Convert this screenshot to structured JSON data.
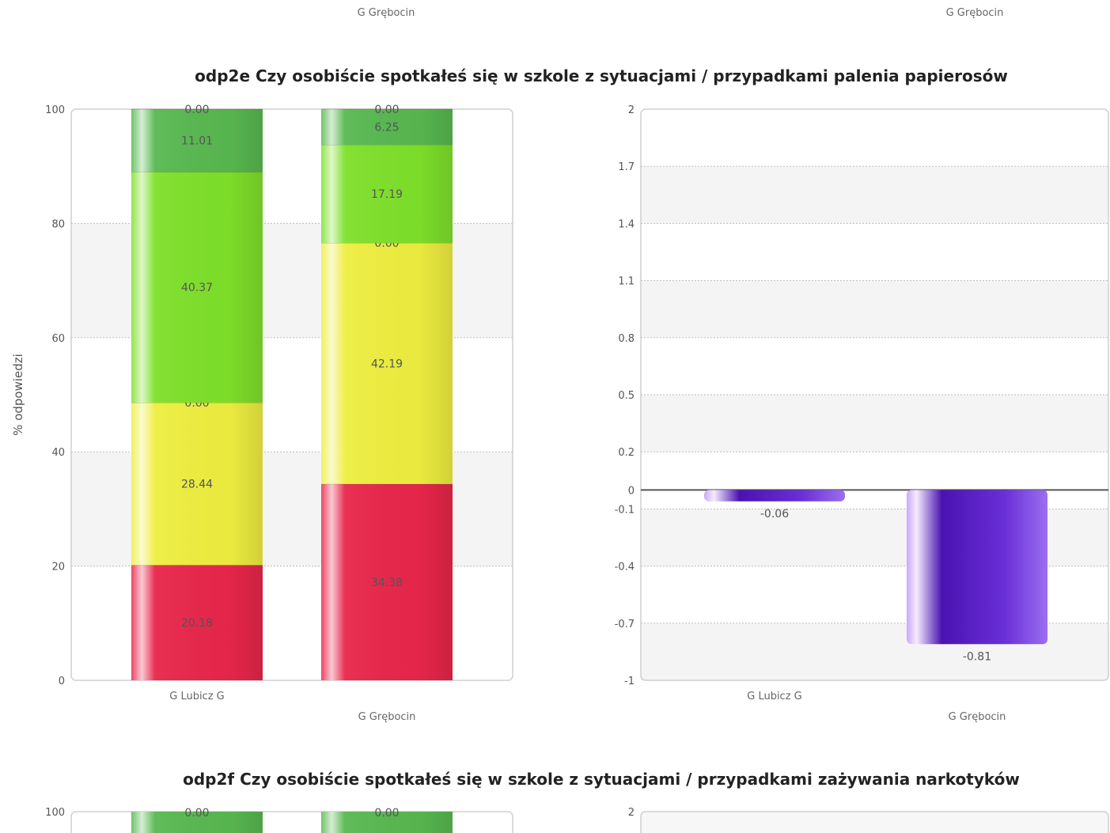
{
  "top_partial": {
    "categories": [
      "G Grębocin",
      "G Grębocin"
    ]
  },
  "charts": [
    {
      "title": "odp2e Czy osobiście spotkałeś się w szkole z sytuacjami / przypadkami palenia papierosów",
      "stacked": {
        "type": "bar",
        "stacked": true,
        "ylabel": "% odpowiedzi",
        "ylim": [
          0,
          100
        ],
        "yticks": [
          "0",
          "20",
          "40",
          "60",
          "80",
          "100"
        ],
        "categories": [
          "G Lubicz G",
          "G Grębocin"
        ],
        "series": [
          {
            "color": "#e8264a",
            "values": [
              20.18,
              34.38
            ],
            "labels": [
              "20.18",
              "34.38"
            ]
          },
          {
            "color": "#eeee40",
            "values": [
              28.44,
              42.19
            ],
            "labels": [
              "28.44",
              "42.19"
            ]
          },
          {
            "color": "#b8d83a",
            "values": [
              0.0,
              0.0
            ],
            "labels": [
              "0.00",
              "0.00"
            ]
          },
          {
            "color": "#7ee02a",
            "values": [
              40.37,
              17.19
            ],
            "labels": [
              "40.37",
              "17.19"
            ]
          },
          {
            "color": "#58b850",
            "values": [
              11.01,
              6.25
            ],
            "labels": [
              "11.01",
              "6.25"
            ]
          },
          {
            "color": "#9ad890",
            "values": [
              0.0,
              0.0
            ],
            "labels": [
              "0.00",
              "0.00"
            ]
          }
        ]
      },
      "mean": {
        "type": "bar",
        "ylim": [
          -1,
          2
        ],
        "yticks": [
          "-1",
          "-0.7",
          "-0.4",
          "-0.1",
          "0",
          "0.2",
          "0.5",
          "0.8",
          "1.1",
          "1.4",
          "1.7",
          "2"
        ],
        "ytick_values": [
          -1,
          -0.7,
          -0.4,
          -0.1,
          0,
          0.2,
          0.5,
          0.8,
          1.1,
          1.4,
          1.7,
          2
        ],
        "categories": [
          "G Lubicz G",
          "G Grębocin"
        ],
        "values": [
          -0.06,
          -0.81
        ],
        "labels": [
          "-0.06",
          "-0.81"
        ],
        "color": "#5a1ec0"
      }
    },
    {
      "title": "odp2f Czy osobiście spotkałeś się w szkole z sytuacjami / przypadkami zażywania narkotyków",
      "stacked": {
        "ytick_top": "100",
        "labels_top": [
          "0.00",
          "0.00"
        ]
      },
      "mean": {
        "ytick_top": "2"
      }
    }
  ],
  "chart_data": [
    {
      "type": "bar",
      "stacked": true,
      "title": "odp2e Czy osobiście spotkałeś się w szkole z sytuacjami / przypadkami palenia papierosów",
      "ylabel": "% odpowiedzi",
      "ylim": [
        0,
        100
      ],
      "categories": [
        "G Lubicz G",
        "G Grębocin"
      ],
      "series": [
        {
          "values": [
            20.18,
            34.38
          ]
        },
        {
          "values": [
            28.44,
            42.19
          ]
        },
        {
          "values": [
            0.0,
            0.0
          ]
        },
        {
          "values": [
            40.37,
            17.19
          ]
        },
        {
          "values": [
            11.01,
            6.25
          ]
        },
        {
          "values": [
            0.0,
            0.0
          ]
        }
      ]
    },
    {
      "type": "bar",
      "title": "odp2e Czy osobiście spotkałeś się w szkole z sytuacjami / przypadkami palenia papierosów",
      "ylim": [
        -1,
        2
      ],
      "categories": [
        "G Lubicz G",
        "G Grębocin"
      ],
      "values": [
        -0.06,
        -0.81
      ]
    }
  ]
}
